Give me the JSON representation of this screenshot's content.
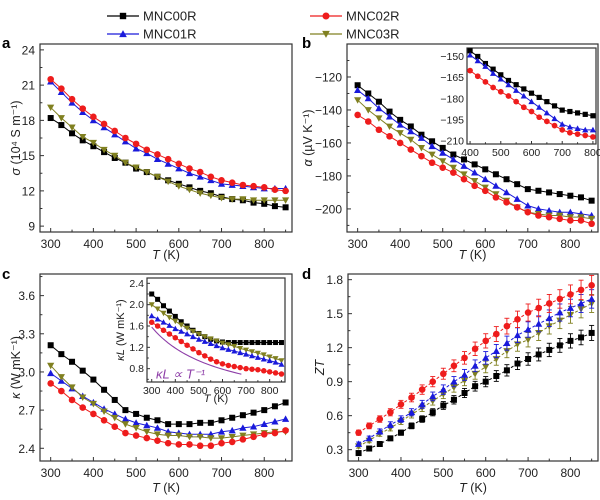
{
  "legend": [
    {
      "name": "MNC00R",
      "color": "#000000",
      "marker": "square"
    },
    {
      "name": "MNC02R",
      "color": "#ee1c1c",
      "marker": "circle"
    },
    {
      "name": "MNC01R",
      "color": "#1a1adb",
      "marker": "triangle-up"
    },
    {
      "name": "MNC03R",
      "color": "#808020",
      "marker": "triangle-down"
    }
  ],
  "chart_data": [
    {
      "panel": "a",
      "type": "line",
      "xlabel": "T (K)",
      "ylabel": "σ (10⁴ S m⁻¹)",
      "xlim": [
        275,
        865
      ],
      "ylim": [
        8.5,
        24.5
      ],
      "xticks": [
        300,
        400,
        500,
        600,
        700,
        800
      ],
      "yticks": [
        9,
        12,
        15,
        18,
        21,
        24
      ],
      "x": [
        300,
        325,
        350,
        375,
        400,
        425,
        450,
        475,
        500,
        525,
        550,
        575,
        600,
        625,
        650,
        675,
        700,
        725,
        750,
        775,
        800,
        825,
        850
      ],
      "series": [
        {
          "name": "MNC00R",
          "values": [
            18.2,
            17.6,
            16.9,
            16.3,
            15.8,
            15.3,
            14.8,
            14.4,
            13.9,
            13.6,
            13.2,
            12.9,
            12.6,
            12.3,
            12.0,
            11.8,
            11.5,
            11.3,
            11.2,
            11.0,
            10.9,
            10.7,
            10.6
          ]
        },
        {
          "name": "MNC01R",
          "values": [
            21.3,
            20.4,
            19.5,
            18.7,
            18.0,
            17.4,
            16.8,
            16.2,
            15.6,
            15.2,
            14.7,
            14.3,
            13.9,
            13.5,
            13.2,
            12.9,
            12.6,
            12.5,
            12.4,
            12.3,
            12.2,
            12.2,
            12.2
          ]
        },
        {
          "name": "MNC03R",
          "values": [
            19.1,
            18.2,
            17.4,
            16.6,
            16.1,
            15.5,
            15.0,
            14.4,
            14.0,
            13.6,
            13.2,
            12.8,
            12.4,
            12.1,
            11.8,
            11.6,
            11.4,
            11.3,
            11.3,
            11.2,
            11.2,
            11.2,
            11.2
          ]
        },
        {
          "name": "MNC02R",
          "values": [
            21.5,
            20.7,
            19.8,
            19.0,
            18.3,
            17.7,
            17.1,
            16.5,
            16.0,
            15.5,
            15.1,
            14.7,
            14.3,
            13.9,
            13.6,
            13.2,
            12.9,
            12.7,
            12.5,
            12.4,
            12.3,
            12.1,
            12.0
          ]
        }
      ]
    },
    {
      "panel": "b",
      "type": "line",
      "xlabel": "T (K)",
      "ylabel": "α (µV K⁻¹)",
      "xlim": [
        275,
        865
      ],
      "ylim": [
        -214,
        -100
      ],
      "xticks": [
        300,
        400,
        500,
        600,
        700,
        800
      ],
      "yticks": [
        -200,
        -180,
        -160,
        -140,
        -120
      ],
      "x": [
        300,
        325,
        350,
        375,
        400,
        425,
        450,
        475,
        500,
        525,
        550,
        575,
        600,
        625,
        650,
        675,
        700,
        725,
        750,
        775,
        800,
        825,
        850
      ],
      "series": [
        {
          "name": "MNC00R",
          "values": [
            -125,
            -130,
            -135,
            -141,
            -146,
            -150,
            -155,
            -159,
            -163,
            -167,
            -170,
            -173,
            -176,
            -179,
            -182,
            -185,
            -188,
            -189,
            -190,
            -191,
            -192,
            -193,
            -195
          ]
        },
        {
          "name": "MNC01R",
          "values": [
            -128,
            -133,
            -139,
            -144,
            -149,
            -153,
            -157,
            -162,
            -166,
            -170,
            -174,
            -178,
            -182,
            -186,
            -190,
            -194,
            -198,
            -200,
            -201,
            -202,
            -202,
            -203,
            -204
          ]
        },
        {
          "name": "MNC03R",
          "values": [
            -134,
            -140,
            -145,
            -150,
            -154,
            -158,
            -163,
            -167,
            -171,
            -175,
            -179,
            -183,
            -187,
            -191,
            -195,
            -199,
            -202,
            -203,
            -204,
            -204,
            -205,
            -205,
            -206
          ]
        },
        {
          "name": "MNC02R",
          "values": [
            -143,
            -147,
            -152,
            -156,
            -160,
            -164,
            -168,
            -172,
            -175,
            -178,
            -182,
            -186,
            -189,
            -193,
            -196,
            -199,
            -202,
            -204,
            -205,
            -206,
            -207,
            -207,
            -209
          ]
        }
      ],
      "inset": {
        "type": "line",
        "xlim": [
          390,
          810
        ],
        "ylim": [
          -212,
          -144
        ],
        "xticks": [
          400,
          500,
          600,
          700,
          800
        ],
        "yticks": [
          -150,
          -165,
          -180,
          -195,
          -210
        ],
        "x": [
          400,
          425,
          450,
          475,
          500,
          525,
          550,
          575,
          600,
          625,
          650,
          675,
          700,
          725,
          750,
          775,
          800
        ],
        "series": [
          {
            "name": "MNC00R",
            "values": [
              -146,
              -150,
              -155,
              -159,
              -163,
              -167,
              -170,
              -173,
              -176,
              -179,
              -182,
              -185,
              -188,
              -189,
              -190,
              -191,
              -192
            ]
          },
          {
            "name": "MNC01R",
            "values": [
              -149,
              -153,
              -157,
              -162,
              -166,
              -170,
              -174,
              -178,
              -182,
              -186,
              -190,
              -194,
              -198,
              -200,
              -201,
              -202,
              -202
            ]
          },
          {
            "name": "MNC02R",
            "values": [
              -160,
              -164,
              -168,
              -172,
              -175,
              -178,
              -182,
              -186,
              -189,
              -193,
              -196,
              -199,
              -202,
              -204,
              -205,
              -206,
              -207
            ]
          }
        ]
      }
    },
    {
      "panel": "c",
      "type": "line",
      "xlabel": "T (K)",
      "ylabel": "κ (W mK⁻¹)",
      "xlim": [
        275,
        865
      ],
      "ylim": [
        2.3,
        3.77
      ],
      "xticks": [
        300,
        400,
        500,
        600,
        700,
        800
      ],
      "yticks": [
        2.4,
        2.7,
        3.0,
        3.3,
        3.6
      ],
      "x": [
        300,
        325,
        350,
        375,
        400,
        425,
        450,
        475,
        500,
        525,
        550,
        575,
        600,
        625,
        650,
        675,
        700,
        725,
        750,
        775,
        800,
        825,
        850
      ],
      "series": [
        {
          "name": "MNC00R",
          "values": [
            3.21,
            3.14,
            3.08,
            3.01,
            2.94,
            2.86,
            2.78,
            2.7,
            2.67,
            2.64,
            2.62,
            2.59,
            2.59,
            2.59,
            2.6,
            2.6,
            2.62,
            2.64,
            2.66,
            2.68,
            2.7,
            2.73,
            2.76
          ]
        },
        {
          "name": "MNC01R",
          "values": [
            2.99,
            2.93,
            2.87,
            2.81,
            2.76,
            2.71,
            2.67,
            2.63,
            2.6,
            2.58,
            2.56,
            2.53,
            2.52,
            2.51,
            2.51,
            2.51,
            2.53,
            2.54,
            2.56,
            2.57,
            2.59,
            2.61,
            2.63
          ]
        },
        {
          "name": "MNC03R",
          "values": [
            3.05,
            2.96,
            2.88,
            2.8,
            2.75,
            2.69,
            2.64,
            2.59,
            2.56,
            2.53,
            2.51,
            2.5,
            2.5,
            2.49,
            2.49,
            2.48,
            2.48,
            2.49,
            2.5,
            2.51,
            2.52,
            2.53,
            2.53
          ]
        },
        {
          "name": "MNC02R",
          "values": [
            2.91,
            2.85,
            2.78,
            2.72,
            2.67,
            2.62,
            2.57,
            2.52,
            2.5,
            2.48,
            2.46,
            2.44,
            2.43,
            2.43,
            2.42,
            2.42,
            2.44,
            2.45,
            2.47,
            2.49,
            2.51,
            2.52,
            2.54
          ]
        }
      ],
      "inset": {
        "type": "line",
        "xlabel": "T (K)",
        "ylabel": "κL (W mK⁻¹)",
        "annotation": "κL ∝ T⁻¹",
        "xlim": [
          280,
          865
        ],
        "ylim": [
          0.55,
          2.5
        ],
        "xticks": [
          300,
          400,
          500,
          600,
          700,
          800
        ],
        "yticks": [
          0.8,
          1.2,
          1.6,
          2.0,
          2.4
        ],
        "x": [
          300,
          325,
          350,
          375,
          400,
          425,
          450,
          475,
          500,
          525,
          550,
          575,
          600,
          625,
          650,
          675,
          700,
          725,
          750,
          775,
          800,
          825,
          850
        ],
        "series": [
          {
            "name": "MNC00R",
            "values": [
              2.2,
              2.1,
              1.98,
              1.88,
              1.78,
              1.68,
              1.6,
              1.52,
              1.46,
              1.4,
              1.35,
              1.32,
              1.3,
              1.29,
              1.29,
              1.29,
              1.29,
              1.29,
              1.29,
              1.29,
              1.29,
              1.29,
              1.29
            ]
          },
          {
            "name": "MNC03R",
            "values": [
              2.0,
              1.92,
              1.84,
              1.76,
              1.69,
              1.62,
              1.56,
              1.5,
              1.45,
              1.4,
              1.36,
              1.32,
              1.28,
              1.25,
              1.22,
              1.18,
              1.15,
              1.12,
              1.09,
              1.06,
              1.02,
              0.99,
              0.95
            ]
          },
          {
            "name": "MNC01R",
            "values": [
              1.79,
              1.73,
              1.67,
              1.61,
              1.55,
              1.5,
              1.45,
              1.4,
              1.35,
              1.31,
              1.27,
              1.23,
              1.19,
              1.16,
              1.13,
              1.1,
              1.07,
              1.04,
              1.01,
              0.98,
              0.95,
              0.92,
              0.88
            ]
          },
          {
            "name": "MNC02R",
            "values": [
              1.67,
              1.6,
              1.52,
              1.45,
              1.38,
              1.31,
              1.24,
              1.17,
              1.1,
              1.04,
              0.98,
              0.93,
              0.89,
              0.86,
              0.84,
              0.82,
              0.8,
              0.79,
              0.78,
              0.76,
              0.74,
              0.72,
              0.7
            ]
          }
        ],
        "fit": {
          "name": "κL ∝ T⁻¹",
          "color": "#8e3ea8",
          "x_range": [
            300,
            680
          ],
          "value_at_300": 1.58
        }
      }
    },
    {
      "panel": "d",
      "type": "line",
      "xlabel": "T (K)",
      "ylabel": "ZT",
      "xlim": [
        275,
        865
      ],
      "ylim": [
        0.2,
        1.85
      ],
      "xticks": [
        300,
        400,
        500,
        600,
        700,
        800
      ],
      "yticks": [
        0.3,
        0.6,
        0.9,
        1.2,
        1.5,
        1.8
      ],
      "error_bars": true,
      "error_fraction": 0.05,
      "x": [
        300,
        325,
        350,
        375,
        400,
        425,
        450,
        475,
        500,
        525,
        550,
        575,
        600,
        625,
        650,
        675,
        700,
        725,
        750,
        775,
        800,
        825,
        850
      ],
      "series": [
        {
          "name": "MNC00R",
          "values": [
            0.27,
            0.31,
            0.35,
            0.4,
            0.45,
            0.51,
            0.57,
            0.63,
            0.69,
            0.74,
            0.8,
            0.86,
            0.9,
            0.95,
            1.0,
            1.06,
            1.1,
            1.14,
            1.18,
            1.22,
            1.26,
            1.29,
            1.33
          ]
        },
        {
          "name": "MNC03R",
          "values": [
            0.33,
            0.38,
            0.44,
            0.49,
            0.55,
            0.61,
            0.67,
            0.73,
            0.79,
            0.85,
            0.91,
            0.97,
            1.03,
            1.1,
            1.17,
            1.23,
            1.27,
            1.33,
            1.39,
            1.44,
            1.49,
            1.54,
            1.59
          ]
        },
        {
          "name": "MNC01R",
          "values": [
            0.35,
            0.4,
            0.46,
            0.52,
            0.57,
            0.63,
            0.7,
            0.77,
            0.83,
            0.9,
            0.96,
            1.04,
            1.11,
            1.17,
            1.24,
            1.31,
            1.36,
            1.41,
            1.46,
            1.51,
            1.55,
            1.59,
            1.63
          ]
        },
        {
          "name": "MNC02R",
          "values": [
            0.45,
            0.51,
            0.57,
            0.63,
            0.7,
            0.76,
            0.83,
            0.9,
            0.97,
            1.04,
            1.11,
            1.19,
            1.26,
            1.32,
            1.39,
            1.45,
            1.51,
            1.55,
            1.59,
            1.63,
            1.67,
            1.71,
            1.75
          ]
        }
      ]
    }
  ]
}
